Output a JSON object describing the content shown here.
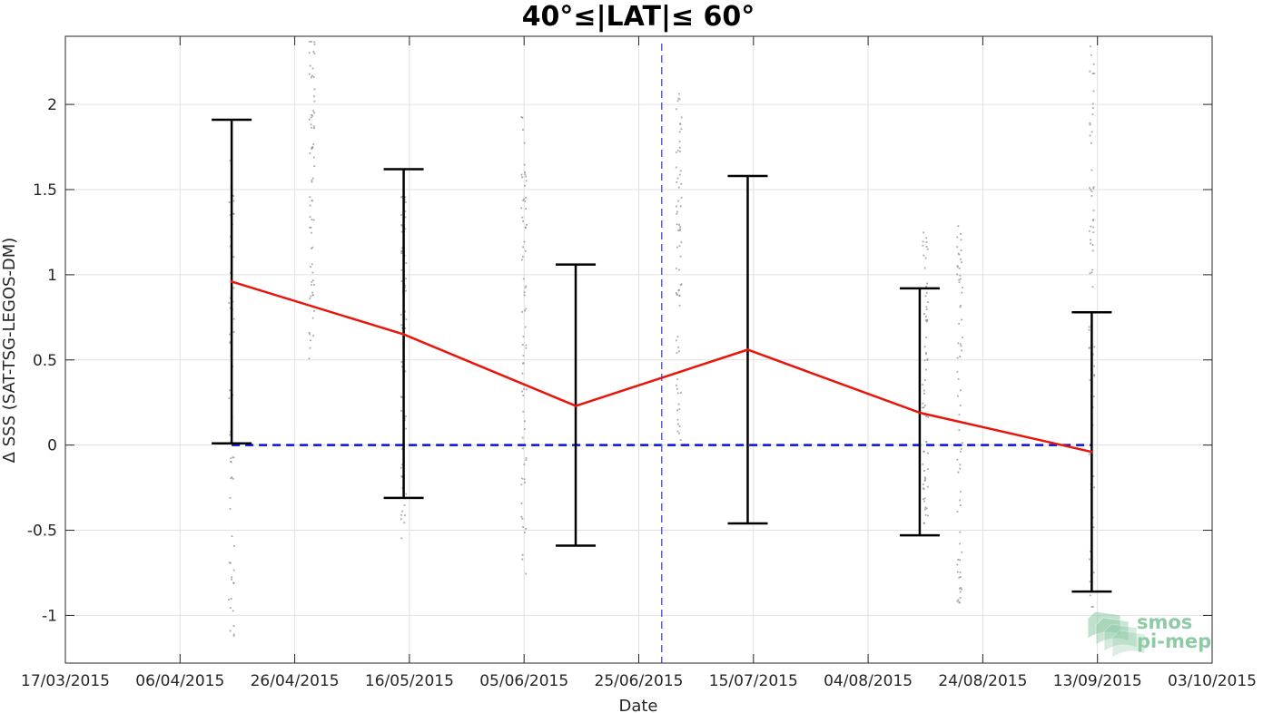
{
  "chart_data": {
    "type": "line",
    "title": "40°≤|LAT|≤ 60°",
    "xlabel": "Date",
    "ylabel": "Δ SSS (SAT-TSG-LEGOS-DM)",
    "xlim": [
      "2015-03-17",
      "2015-10-03"
    ],
    "ylim": [
      -1.28,
      2.4
    ],
    "x_ticks": [
      "17/03/2015",
      "06/04/2015",
      "26/04/2015",
      "16/05/2015",
      "05/06/2015",
      "25/06/2015",
      "15/07/2015",
      "04/08/2015",
      "24/08/2015",
      "13/09/2015",
      "03/10/2015"
    ],
    "y_ticks": [
      -1,
      -0.5,
      0,
      0.5,
      1,
      1.5,
      2
    ],
    "y_tick_labels": [
      "-1",
      "-0.5",
      "0",
      "0.5",
      "1",
      "1.5",
      "2"
    ],
    "grid": true,
    "series": [
      {
        "style": "red-line-with-errorbars",
        "color": "#e8150b",
        "x": [
          "2015-04-15",
          "2015-05-15",
          "2015-06-14",
          "2015-07-14",
          "2015-08-13",
          "2015-09-12"
        ],
        "y": [
          0.96,
          0.65,
          0.23,
          0.56,
          0.19,
          -0.04
        ],
        "err_lower": [
          0.01,
          -0.31,
          -0.59,
          -0.46,
          -0.53,
          -0.86
        ],
        "err_upper": [
          1.91,
          1.62,
          1.06,
          1.58,
          0.92,
          0.78
        ]
      }
    ],
    "reference_line": {
      "y": 0,
      "x_from": "2015-04-15",
      "x_to": "2015-09-12",
      "color": "#0a10d6",
      "dash": "dashed"
    },
    "vertical_marker": {
      "x": "2015-06-29",
      "color": "#5a5fd6",
      "dash": "dashed"
    },
    "scatter_clusters": [
      {
        "x": "2015-04-15",
        "y_min": -1.12,
        "y_max": 1.68,
        "color": "#8c8c8c"
      },
      {
        "x": "2015-04-29",
        "y_min": 0.5,
        "y_max": 2.38,
        "color": "#8c8c8c"
      },
      {
        "x": "2015-05-15",
        "y_min": -0.55,
        "y_max": 1.55,
        "color": "#8c8c8c"
      },
      {
        "x": "2015-06-05",
        "y_min": -0.76,
        "y_max": 1.94,
        "color": "#8c8c8c"
      },
      {
        "x": "2015-07-02",
        "y_min": -0.03,
        "y_max": 2.07,
        "color": "#8c8c8c"
      },
      {
        "x": "2015-08-14",
        "y_min": -0.47,
        "y_max": 1.3,
        "color": "#8c8c8c"
      },
      {
        "x": "2015-08-20",
        "y_min": -0.93,
        "y_max": 1.33,
        "color": "#8c8c8c"
      },
      {
        "x": "2015-09-12",
        "y_min": -0.95,
        "y_max": 2.37,
        "color": "#8c8c8c"
      }
    ]
  },
  "logo": {
    "line1": "smos",
    "line2": "pi-mep",
    "icon": "wave-stack-icon",
    "color": "#8fcaa6"
  },
  "colors": {
    "grid": "#e0e0e0",
    "axis": "#262626",
    "errorbar": "#000000"
  }
}
